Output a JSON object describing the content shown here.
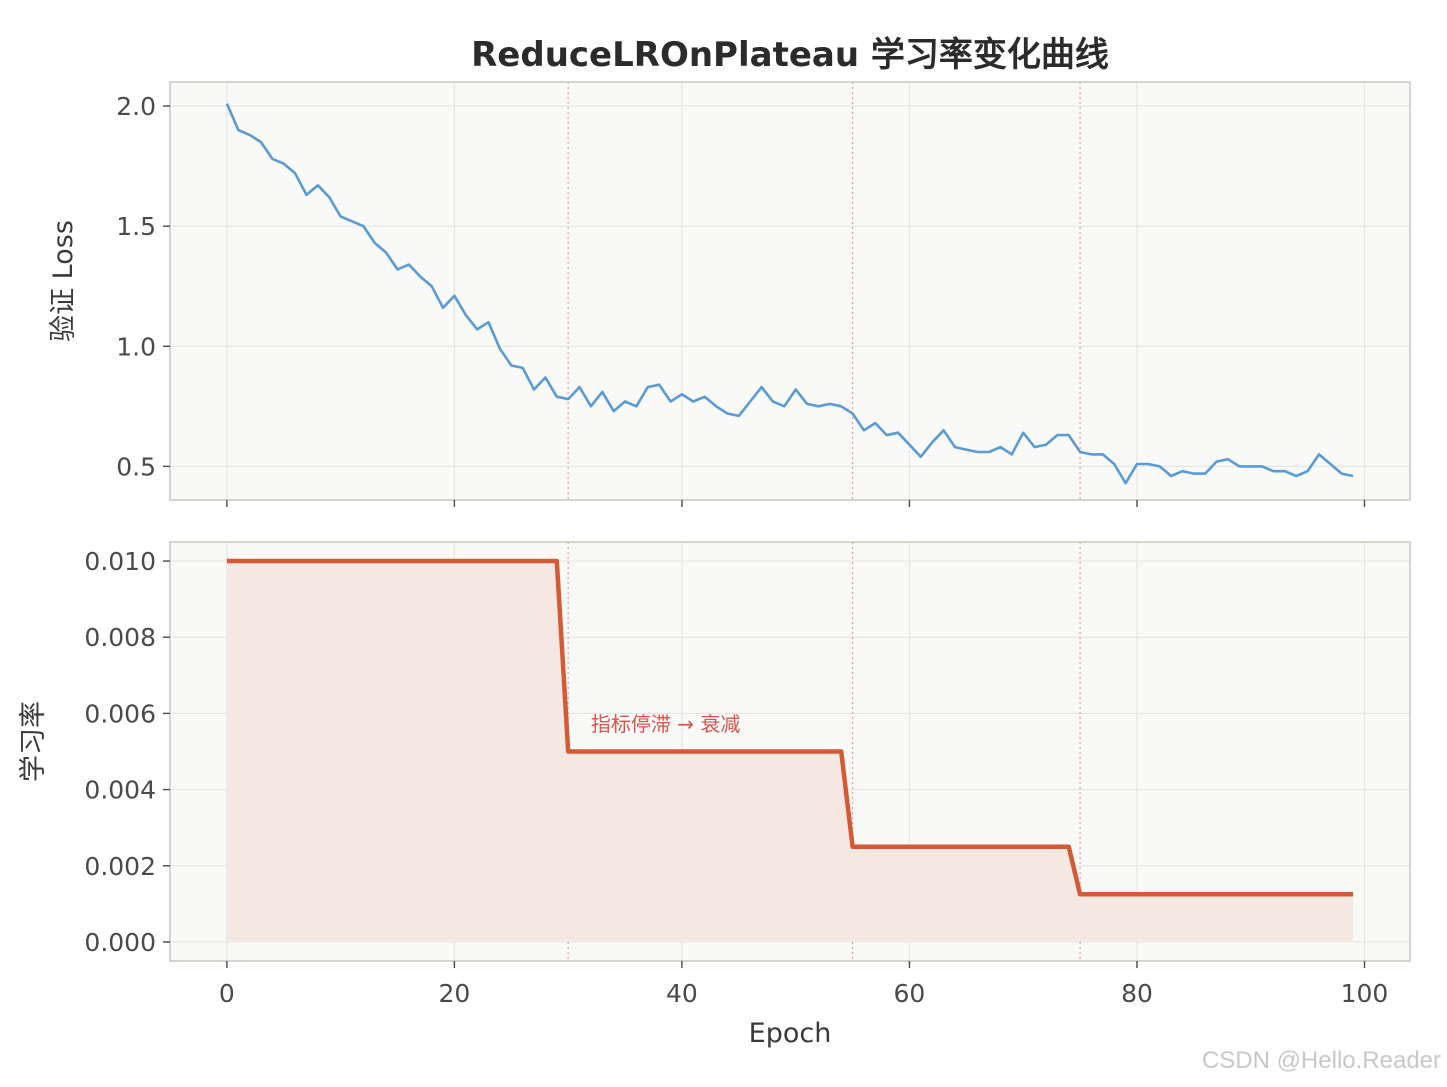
{
  "watermark": "CSDN @Hello.Reader",
  "chart_data": {
    "title": "ReduceLROnPlateau 学习率变化曲线",
    "xlabel": "Epoch",
    "xlim": [
      -5,
      104
    ],
    "xticks": [
      0,
      20,
      40,
      60,
      80,
      100
    ],
    "grid": true,
    "decay_epochs": [
      30,
      55,
      75
    ],
    "colors": {
      "loss": "#5b9bd5",
      "lr": "#d35a34",
      "lr_fill": "#f5e8e3",
      "decay_line": "#e89a9a",
      "annot": "#d9534f"
    },
    "subplots": [
      {
        "type": "line",
        "name": "loss",
        "ylabel": "验证 Loss",
        "ylim": [
          0.36,
          2.1
        ],
        "yticks": [
          0.5,
          1.0,
          1.5,
          2.0
        ],
        "ytick_labels": [
          "0.5",
          "1.0",
          "1.5",
          "2.0"
        ],
        "x": [
          0,
          1,
          2,
          3,
          4,
          5,
          6,
          7,
          8,
          9,
          10,
          11,
          12,
          13,
          14,
          15,
          16,
          17,
          18,
          19,
          20,
          21,
          22,
          23,
          24,
          25,
          26,
          27,
          28,
          29,
          30,
          31,
          32,
          33,
          34,
          35,
          36,
          37,
          38,
          39,
          40,
          41,
          42,
          43,
          44,
          45,
          46,
          47,
          48,
          49,
          50,
          51,
          52,
          53,
          54,
          55,
          56,
          57,
          58,
          59,
          60,
          61,
          62,
          63,
          64,
          65,
          66,
          67,
          68,
          69,
          70,
          71,
          72,
          73,
          74,
          75,
          76,
          77,
          78,
          79,
          80,
          81,
          82,
          83,
          84,
          85,
          86,
          87,
          88,
          89,
          90,
          91,
          92,
          93,
          94,
          95,
          96,
          97,
          98,
          99
        ],
        "y": [
          2.01,
          1.9,
          1.88,
          1.85,
          1.78,
          1.76,
          1.72,
          1.63,
          1.67,
          1.62,
          1.54,
          1.52,
          1.5,
          1.43,
          1.39,
          1.32,
          1.34,
          1.29,
          1.25,
          1.16,
          1.21,
          1.13,
          1.07,
          1.1,
          0.99,
          0.92,
          0.91,
          0.82,
          0.87,
          0.79,
          0.78,
          0.83,
          0.75,
          0.81,
          0.73,
          0.77,
          0.75,
          0.83,
          0.84,
          0.77,
          0.8,
          0.77,
          0.79,
          0.75,
          0.72,
          0.71,
          0.77,
          0.83,
          0.77,
          0.75,
          0.82,
          0.76,
          0.75,
          0.76,
          0.75,
          0.72,
          0.65,
          0.68,
          0.63,
          0.64,
          0.59,
          0.54,
          0.6,
          0.65,
          0.58,
          0.57,
          0.56,
          0.56,
          0.58,
          0.55,
          0.64,
          0.58,
          0.59,
          0.63,
          0.63,
          0.56,
          0.55,
          0.55,
          0.51,
          0.43,
          0.51,
          0.51,
          0.5,
          0.46,
          0.48,
          0.47,
          0.47,
          0.52,
          0.53,
          0.5,
          0.5,
          0.5,
          0.48,
          0.48,
          0.46,
          0.48,
          0.55,
          0.51,
          0.47,
          0.46
        ]
      },
      {
        "type": "area",
        "name": "lr",
        "ylabel": "学习率",
        "ylim": [
          -0.0005,
          0.0105
        ],
        "yticks": [
          0.0,
          0.002,
          0.004,
          0.006,
          0.008,
          0.01
        ],
        "ytick_labels": [
          "0.000",
          "0.002",
          "0.004",
          "0.006",
          "0.008",
          "0.010"
        ],
        "x": [
          0,
          29,
          30,
          54,
          55,
          74,
          75,
          99
        ],
        "y": [
          0.01,
          0.01,
          0.005,
          0.005,
          0.0025,
          0.0025,
          0.00125,
          0.00125
        ],
        "annotation": {
          "text": "指标停滞 → 衰减",
          "x": 32,
          "y": 0.0057
        }
      }
    ]
  }
}
